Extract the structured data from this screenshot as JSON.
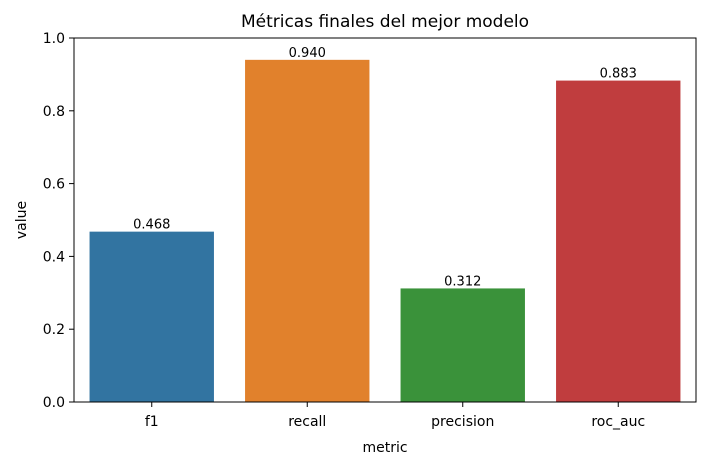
{
  "chart_data": {
    "type": "bar",
    "title": "Métricas finales del mejor modelo",
    "xlabel": "metric",
    "ylabel": "value",
    "categories": [
      "f1",
      "recall",
      "precision",
      "roc_auc"
    ],
    "values": [
      0.468,
      0.94,
      0.312,
      0.883
    ],
    "value_labels": [
      "0.468",
      "0.940",
      "0.312",
      "0.883"
    ],
    "colors": [
      "#3274a1",
      "#e1812c",
      "#3a923a",
      "#c03d3e"
    ],
    "ylim": [
      0,
      1.0
    ],
    "yticks": [
      0.0,
      0.2,
      0.4,
      0.6,
      0.8,
      1.0
    ],
    "ytick_labels": [
      "0.0",
      "0.2",
      "0.4",
      "0.6",
      "0.8",
      "1.0"
    ],
    "grid": false,
    "legend": "none"
  }
}
